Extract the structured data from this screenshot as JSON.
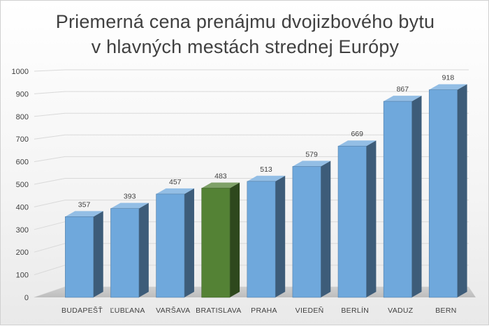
{
  "chart_data": {
    "type": "bar",
    "title_lines": [
      "Priemerná cena prenájmu dvojizbového bytu",
      "v hlavných mestách strednej Európy"
    ],
    "categories": [
      "BUDAPEŠŤ",
      "ĽUBĽANA",
      "VARŠAVA",
      "BRATISLAVA",
      "PRAHA",
      "VIEDEŇ",
      "BERLÍN",
      "VADUZ",
      "BERN"
    ],
    "values": [
      357,
      393,
      457,
      483,
      513,
      579,
      669,
      867,
      918
    ],
    "ylim": [
      0,
      1000
    ],
    "yticks": [
      0,
      100,
      200,
      300,
      400,
      500,
      600,
      700,
      800,
      900,
      1000
    ],
    "grid": true,
    "style": "3d-column",
    "colors": {
      "default": "#6fa8dc",
      "highlight": "#548235"
    },
    "highlight_category": "BRATISLAVA"
  }
}
